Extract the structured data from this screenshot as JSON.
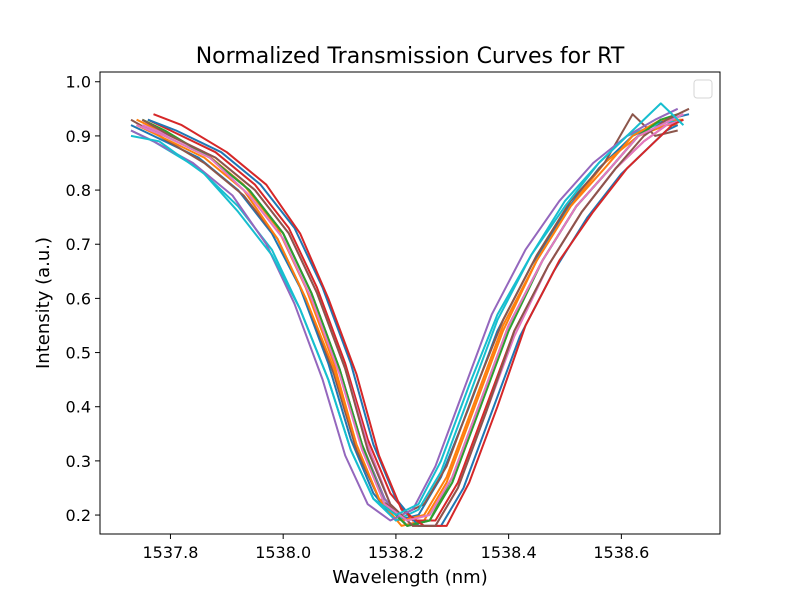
{
  "chart_data": {
    "type": "line",
    "title": "Normalized Transmission Curves for RT",
    "xlabel": "Wavelength (nm)",
    "ylabel": "Intensity (a.u.)",
    "xlim": [
      1537.675,
      1538.775
    ],
    "ylim": [
      0.165,
      1.018
    ],
    "x_ticks": [
      1537.8,
      1538.0,
      1538.2,
      1538.4,
      1538.6
    ],
    "x_tick_labels": [
      "1537.8",
      "1538.0",
      "1538.2",
      "1538.4",
      "1538.6"
    ],
    "y_ticks": [
      0.2,
      0.3,
      0.4,
      0.5,
      0.6,
      0.7,
      0.8,
      0.9,
      1.0
    ],
    "y_tick_labels": [
      "0.2",
      "0.3",
      "0.4",
      "0.5",
      "0.6",
      "0.7",
      "0.8",
      "0.9",
      "1.0"
    ],
    "grid": false,
    "legend": {
      "placement": "upper right",
      "entries": []
    },
    "colors": [
      "#1f77b4",
      "#ff7f0e",
      "#2ca02c",
      "#d62728",
      "#9467bd",
      "#8c564b",
      "#e377c2",
      "#17becf"
    ],
    "series": [
      {
        "x": [
          1537.73,
          1537.77,
          1537.85,
          1537.92,
          1537.98,
          1538.03,
          1538.08,
          1538.12,
          1538.16,
          1538.2,
          1538.24,
          1538.28,
          1538.33,
          1538.38,
          1538.44,
          1538.5,
          1538.56,
          1538.62,
          1538.68,
          1538.72
        ],
        "y": [
          0.92,
          0.9,
          0.86,
          0.8,
          0.72,
          0.62,
          0.48,
          0.34,
          0.24,
          0.19,
          0.2,
          0.27,
          0.4,
          0.54,
          0.66,
          0.76,
          0.84,
          0.9,
          0.93,
          0.94
        ]
      },
      {
        "x": [
          1537.74,
          1537.78,
          1537.86,
          1537.93,
          1537.99,
          1538.04,
          1538.09,
          1538.13,
          1538.17,
          1538.21,
          1538.25,
          1538.29,
          1538.34,
          1538.39,
          1538.45,
          1538.51,
          1538.57,
          1538.63,
          1538.68,
          1538.7
        ],
        "y": [
          0.93,
          0.91,
          0.87,
          0.81,
          0.73,
          0.62,
          0.48,
          0.33,
          0.23,
          0.18,
          0.19,
          0.26,
          0.4,
          0.54,
          0.67,
          0.77,
          0.85,
          0.9,
          0.92,
          0.92
        ]
      },
      {
        "x": [
          1537.75,
          1537.79,
          1537.87,
          1537.94,
          1538.0,
          1538.05,
          1538.1,
          1538.14,
          1538.18,
          1538.22,
          1538.26,
          1538.3,
          1538.35,
          1538.4,
          1538.46,
          1538.52,
          1538.58,
          1538.63,
          1538.67,
          1538.69
        ],
        "y": [
          0.92,
          0.9,
          0.86,
          0.8,
          0.72,
          0.61,
          0.47,
          0.33,
          0.23,
          0.18,
          0.19,
          0.27,
          0.41,
          0.55,
          0.67,
          0.77,
          0.84,
          0.9,
          0.93,
          0.93
        ]
      },
      {
        "x": [
          1537.76,
          1537.8,
          1537.88,
          1537.95,
          1538.01,
          1538.06,
          1538.11,
          1538.15,
          1538.19,
          1538.23,
          1538.27,
          1538.31,
          1538.36,
          1538.41,
          1538.47,
          1538.53,
          1538.59,
          1538.64,
          1538.68,
          1538.7
        ],
        "y": [
          0.93,
          0.91,
          0.87,
          0.81,
          0.73,
          0.62,
          0.48,
          0.34,
          0.24,
          0.19,
          0.19,
          0.26,
          0.4,
          0.54,
          0.66,
          0.76,
          0.84,
          0.89,
          0.92,
          0.93
        ]
      },
      {
        "x": [
          1537.74,
          1537.79,
          1537.87,
          1537.94,
          1538.0,
          1538.05,
          1538.1,
          1538.14,
          1538.18,
          1538.22,
          1538.26,
          1538.3,
          1538.35,
          1538.4,
          1538.46,
          1538.52,
          1538.58,
          1538.63,
          1538.67,
          1538.71
        ],
        "y": [
          0.92,
          0.9,
          0.86,
          0.8,
          0.72,
          0.61,
          0.47,
          0.33,
          0.23,
          0.18,
          0.19,
          0.26,
          0.4,
          0.55,
          0.67,
          0.77,
          0.84,
          0.9,
          0.92,
          0.94
        ]
      },
      {
        "x": [
          1537.73,
          1537.78,
          1537.86,
          1537.93,
          1537.99,
          1538.04,
          1538.09,
          1538.13,
          1538.17,
          1538.21,
          1538.25,
          1538.29,
          1538.34,
          1538.39,
          1538.45,
          1538.51,
          1538.57,
          1538.62,
          1538.66,
          1538.7
        ],
        "y": [
          0.93,
          0.9,
          0.85,
          0.79,
          0.71,
          0.6,
          0.46,
          0.32,
          0.23,
          0.2,
          0.22,
          0.29,
          0.43,
          0.56,
          0.68,
          0.78,
          0.85,
          0.94,
          0.9,
          0.91
        ]
      },
      {
        "x": [
          1537.75,
          1537.8,
          1537.88,
          1537.95,
          1538.01,
          1538.06,
          1538.11,
          1538.15,
          1538.19,
          1538.23,
          1538.27,
          1538.31,
          1538.36,
          1538.41,
          1538.47,
          1538.53,
          1538.59,
          1538.64,
          1538.68,
          1538.71
        ],
        "y": [
          0.92,
          0.9,
          0.86,
          0.8,
          0.72,
          0.61,
          0.47,
          0.33,
          0.22,
          0.18,
          0.18,
          0.25,
          0.39,
          0.53,
          0.66,
          0.76,
          0.84,
          0.89,
          0.92,
          0.93
        ]
      },
      {
        "x": [
          1537.73,
          1537.77,
          1537.85,
          1537.92,
          1537.98,
          1538.03,
          1538.08,
          1538.12,
          1538.16,
          1538.2,
          1538.24,
          1538.28,
          1538.33,
          1538.38,
          1538.44,
          1538.5,
          1538.56,
          1538.61,
          1538.66,
          1538.7
        ],
        "y": [
          0.91,
          0.89,
          0.84,
          0.77,
          0.69,
          0.58,
          0.45,
          0.32,
          0.23,
          0.19,
          0.21,
          0.28,
          0.42,
          0.56,
          0.68,
          0.78,
          0.85,
          0.9,
          0.92,
          0.93
        ]
      },
      {
        "x": [
          1537.76,
          1537.81,
          1537.89,
          1537.96,
          1538.02,
          1538.07,
          1538.12,
          1538.16,
          1538.2,
          1538.24,
          1538.28,
          1538.32,
          1538.37,
          1538.42,
          1538.48,
          1538.54,
          1538.6,
          1538.65,
          1538.68,
          1538.7
        ],
        "y": [
          0.93,
          0.91,
          0.87,
          0.81,
          0.73,
          0.62,
          0.48,
          0.33,
          0.23,
          0.18,
          0.18,
          0.25,
          0.39,
          0.53,
          0.65,
          0.75,
          0.83,
          0.88,
          0.91,
          0.92
        ]
      },
      {
        "x": [
          1537.74,
          1537.78,
          1537.86,
          1537.93,
          1537.99,
          1538.04,
          1538.09,
          1538.13,
          1538.17,
          1538.21,
          1538.25,
          1538.29,
          1538.34,
          1538.39,
          1538.45,
          1538.51,
          1538.57,
          1538.62,
          1538.67,
          1538.71
        ],
        "y": [
          0.92,
          0.9,
          0.86,
          0.8,
          0.71,
          0.6,
          0.47,
          0.33,
          0.23,
          0.19,
          0.2,
          0.27,
          0.41,
          0.55,
          0.67,
          0.77,
          0.84,
          0.9,
          0.93,
          0.93
        ]
      },
      {
        "x": [
          1537.75,
          1537.79,
          1537.87,
          1537.94,
          1538.0,
          1538.05,
          1538.1,
          1538.14,
          1538.18,
          1538.22,
          1538.26,
          1538.3,
          1538.35,
          1538.4,
          1538.46,
          1538.52,
          1538.58,
          1538.63,
          1538.67,
          1538.7
        ],
        "y": [
          0.93,
          0.91,
          0.86,
          0.8,
          0.72,
          0.61,
          0.47,
          0.33,
          0.22,
          0.18,
          0.19,
          0.26,
          0.4,
          0.54,
          0.67,
          0.77,
          0.84,
          0.9,
          0.93,
          0.94
        ]
      },
      {
        "x": [
          1537.77,
          1537.82,
          1537.9,
          1537.97,
          1538.03,
          1538.08,
          1538.13,
          1538.17,
          1538.21,
          1538.25,
          1538.29,
          1538.33,
          1538.38,
          1538.43,
          1538.49,
          1538.55,
          1538.61,
          1538.66,
          1538.69,
          1538.71
        ],
        "y": [
          0.94,
          0.92,
          0.87,
          0.81,
          0.72,
          0.6,
          0.46,
          0.31,
          0.21,
          0.18,
          0.18,
          0.26,
          0.4,
          0.55,
          0.67,
          0.76,
          0.84,
          0.89,
          0.92,
          0.93
        ]
      },
      {
        "x": [
          1537.73,
          1537.77,
          1537.84,
          1537.91,
          1537.97,
          1538.02,
          1538.07,
          1538.11,
          1538.15,
          1538.19,
          1538.23,
          1538.27,
          1538.32,
          1538.37,
          1538.43,
          1538.49,
          1538.55,
          1538.61,
          1538.66,
          1538.7
        ],
        "y": [
          0.91,
          0.89,
          0.85,
          0.79,
          0.7,
          0.59,
          0.45,
          0.31,
          0.22,
          0.19,
          0.21,
          0.29,
          0.43,
          0.57,
          0.69,
          0.78,
          0.85,
          0.9,
          0.93,
          0.95
        ]
      },
      {
        "x": [
          1537.75,
          1537.8,
          1537.88,
          1537.95,
          1538.01,
          1538.06,
          1538.11,
          1538.15,
          1538.19,
          1538.23,
          1538.27,
          1538.31,
          1538.36,
          1538.41,
          1538.47,
          1538.53,
          1538.59,
          1538.64,
          1538.68,
          1538.72
        ],
        "y": [
          0.93,
          0.9,
          0.86,
          0.8,
          0.72,
          0.61,
          0.47,
          0.32,
          0.22,
          0.18,
          0.18,
          0.25,
          0.39,
          0.54,
          0.66,
          0.76,
          0.84,
          0.9,
          0.93,
          0.95
        ]
      },
      {
        "x": [
          1537.74,
          1537.79,
          1537.87,
          1537.94,
          1538.0,
          1538.05,
          1538.1,
          1538.14,
          1538.18,
          1538.22,
          1538.26,
          1538.3,
          1538.35,
          1538.4,
          1538.46,
          1538.52,
          1538.58,
          1538.63,
          1538.67,
          1538.71
        ],
        "y": [
          0.92,
          0.9,
          0.86,
          0.79,
          0.71,
          0.6,
          0.46,
          0.32,
          0.22,
          0.19,
          0.2,
          0.27,
          0.41,
          0.55,
          0.67,
          0.77,
          0.84,
          0.9,
          0.92,
          0.94
        ]
      },
      {
        "x": [
          1537.73,
          1537.78,
          1537.86,
          1537.92,
          1537.98,
          1538.03,
          1538.08,
          1538.12,
          1538.16,
          1538.2,
          1538.24,
          1538.28,
          1538.33,
          1538.38,
          1538.44,
          1538.5,
          1538.56,
          1538.62,
          1538.67,
          1538.71
        ],
        "y": [
          0.9,
          0.89,
          0.83,
          0.76,
          0.68,
          0.58,
          0.45,
          0.32,
          0.23,
          0.2,
          0.22,
          0.3,
          0.44,
          0.57,
          0.68,
          0.77,
          0.85,
          0.91,
          0.96,
          0.92
        ]
      }
    ]
  }
}
